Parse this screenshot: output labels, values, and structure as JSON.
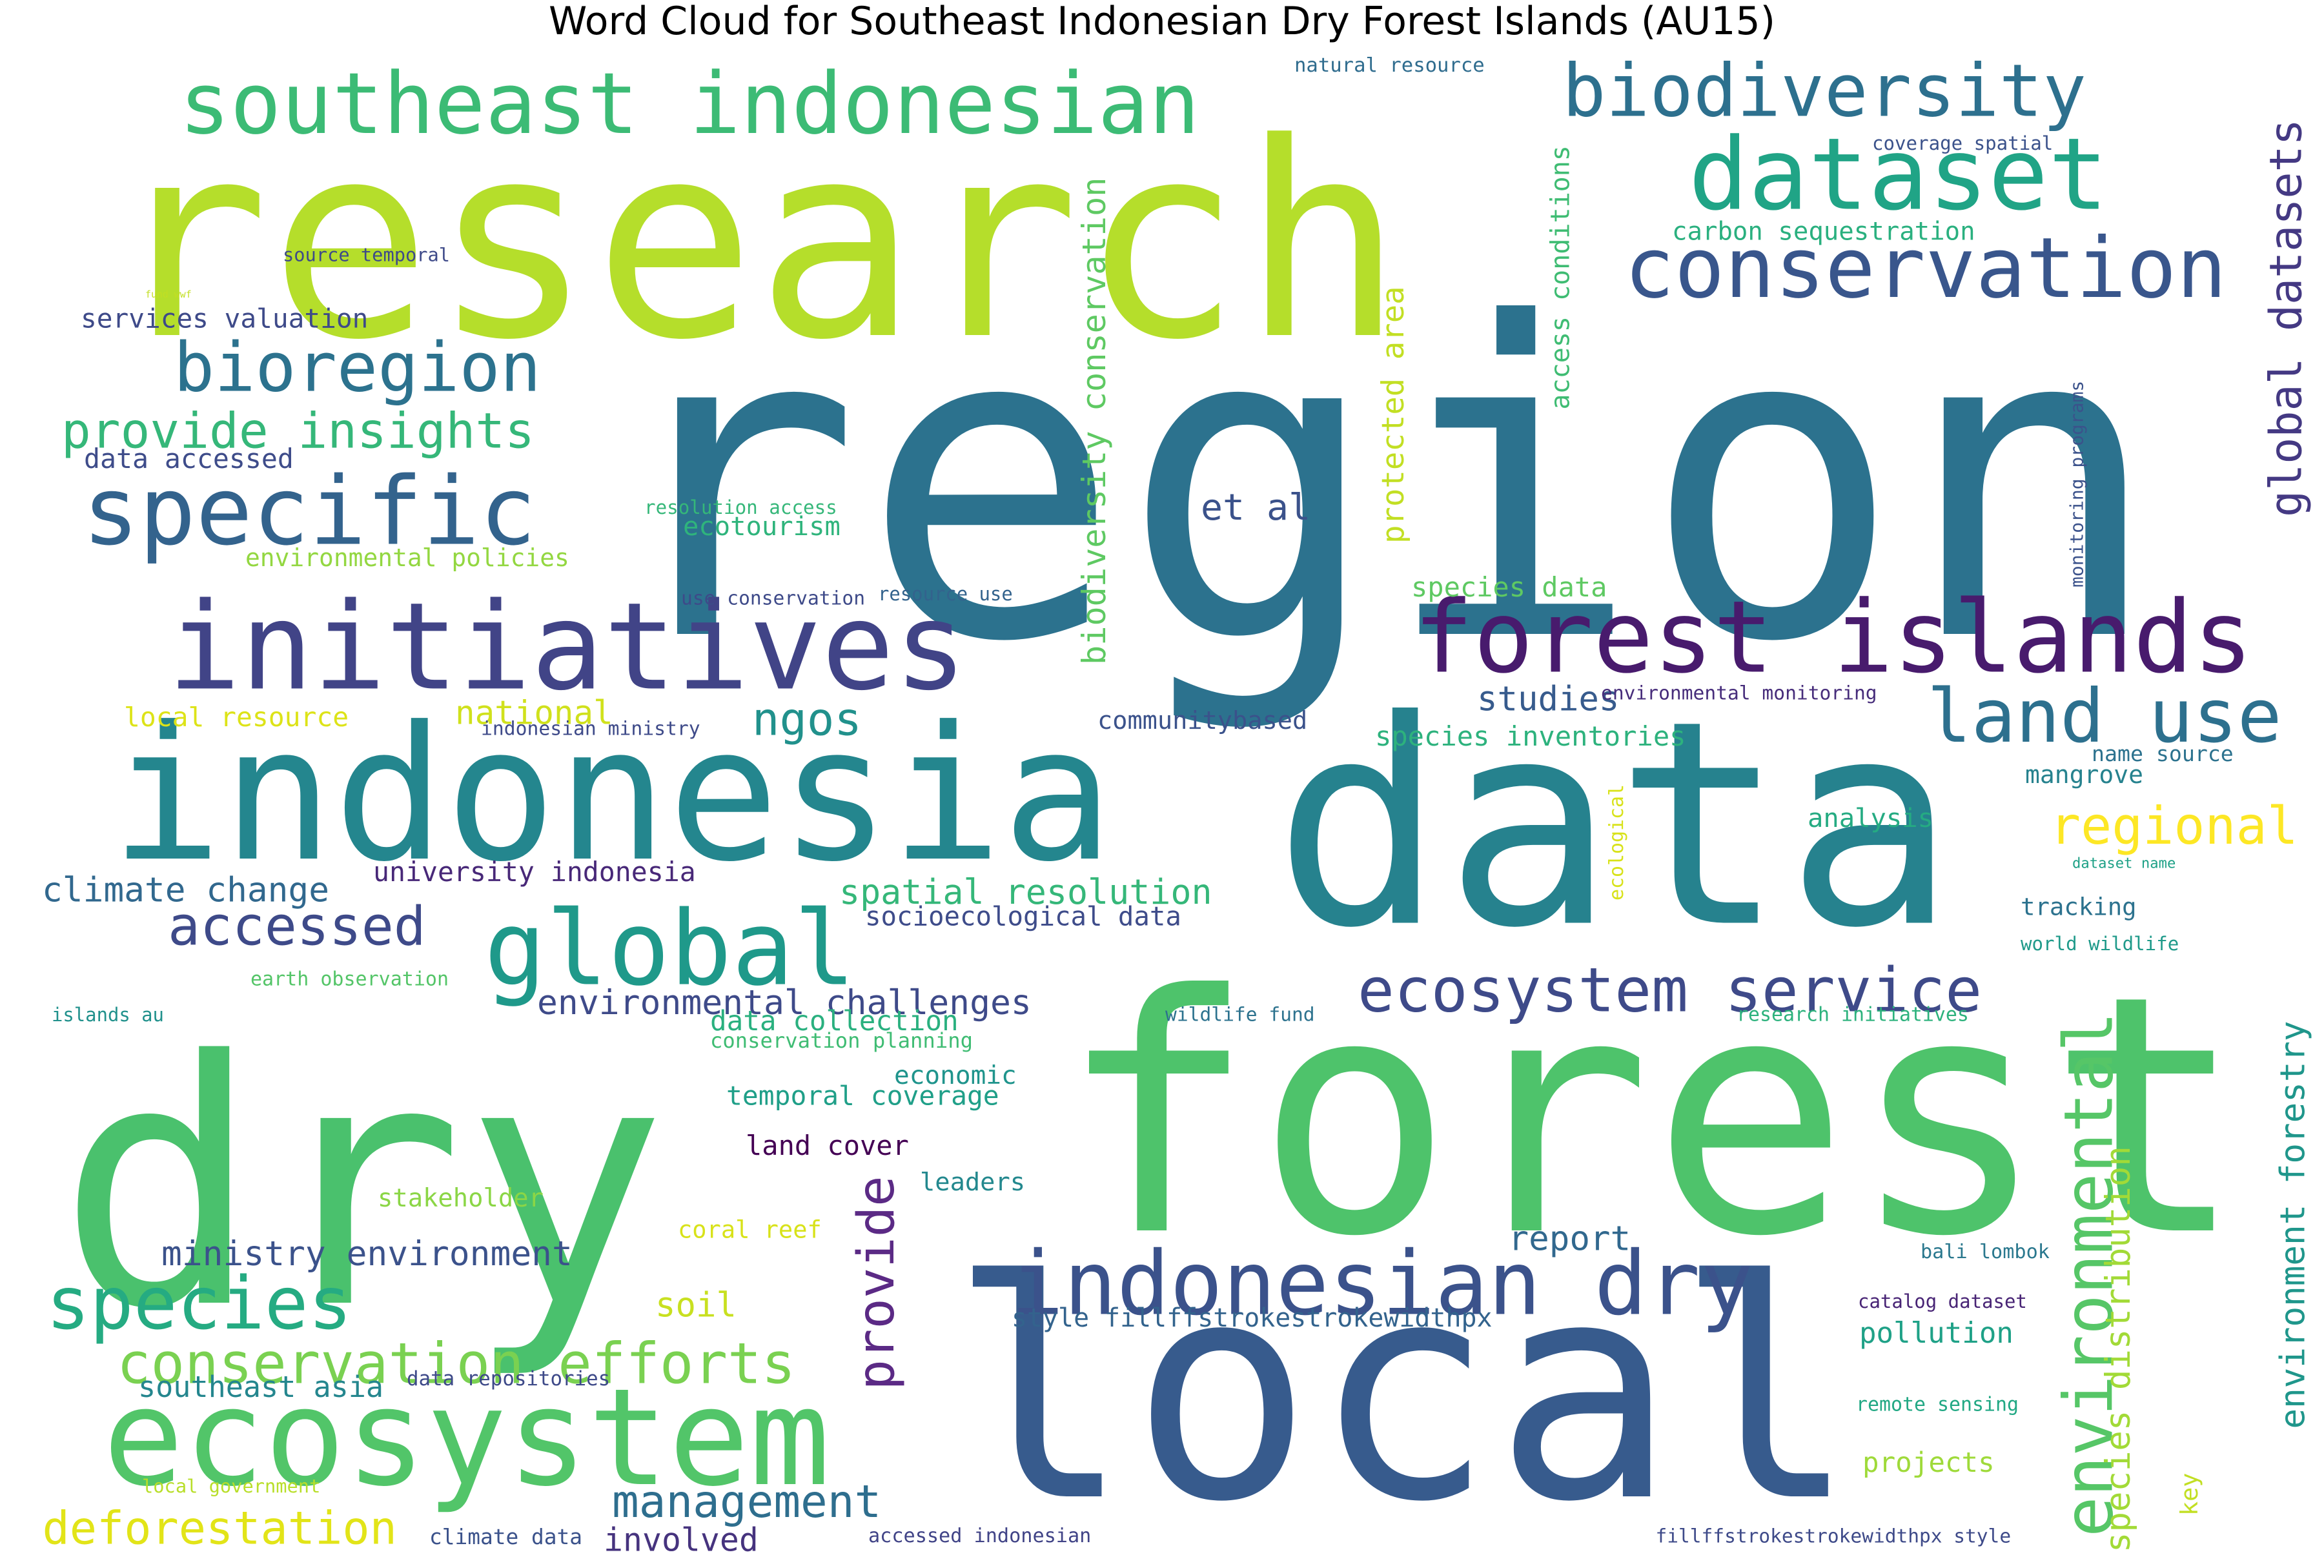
{
  "title": "Word Cloud for Southeast Indonesian Dry Forest Islands (AU15)",
  "words": [
    {
      "text": "region",
      "color": "#2c728e",
      "orientation": "horizontal"
    },
    {
      "text": "research",
      "color": "#b5de2b",
      "orientation": "horizontal"
    },
    {
      "text": "data",
      "color": "#26828e",
      "orientation": "horizontal"
    },
    {
      "text": "forest",
      "color": "#4ec36b",
      "orientation": "horizontal"
    },
    {
      "text": "dry",
      "color": "#4ac16d",
      "orientation": "horizontal"
    },
    {
      "text": "local",
      "color": "#375b8d",
      "orientation": "horizontal"
    },
    {
      "text": "indonesia",
      "color": "#24868e",
      "orientation": "horizontal"
    },
    {
      "text": "initiatives",
      "color": "#414487",
      "orientation": "horizontal"
    },
    {
      "text": "southeast indonesian",
      "color": "#3cbb75",
      "orientation": "horizontal"
    },
    {
      "text": "ecosystem",
      "color": "#52c569",
      "orientation": "horizontal"
    },
    {
      "text": "forest islands",
      "color": "#481b6d",
      "orientation": "horizontal"
    },
    {
      "text": "specific",
      "color": "#33638d",
      "orientation": "horizontal"
    },
    {
      "text": "indonesian dry",
      "color": "#3b528b",
      "orientation": "horizontal"
    },
    {
      "text": "dataset",
      "color": "#20a486",
      "orientation": "horizontal"
    },
    {
      "text": "biodiversity",
      "color": "#2d708e",
      "orientation": "horizontal"
    },
    {
      "text": "conservation",
      "color": "#39568c",
      "orientation": "horizontal"
    },
    {
      "text": "global",
      "color": "#1f998a",
      "orientation": "horizontal"
    },
    {
      "text": "bioregion",
      "color": "#2c728e",
      "orientation": "horizontal"
    },
    {
      "text": "environmental",
      "color": "#56c667",
      "orientation": "vertical"
    },
    {
      "text": "species",
      "color": "#25ab82",
      "orientation": "horizontal"
    },
    {
      "text": "conservation efforts",
      "color": "#7ad151",
      "orientation": "horizontal"
    },
    {
      "text": "ecosystem service",
      "color": "#3e4a89",
      "orientation": "horizontal"
    },
    {
      "text": "land use",
      "color": "#2d708e",
      "orientation": "horizontal"
    },
    {
      "text": "global datasets",
      "color": "#443983",
      "orientation": "vertical"
    },
    {
      "text": "provide insights",
      "color": "#35b779",
      "orientation": "horizontal"
    },
    {
      "text": "regional",
      "color": "#fde725",
      "orientation": "horizontal"
    },
    {
      "text": "accessed",
      "color": "#3e4a89",
      "orientation": "horizontal"
    },
    {
      "text": "provide",
      "color": "#5b2a85",
      "orientation": "vertical"
    },
    {
      "text": "deforestation",
      "color": "#e2e418",
      "orientation": "horizontal"
    },
    {
      "text": "management",
      "color": "#2e6e8e",
      "orientation": "horizontal"
    },
    {
      "text": "ngos",
      "color": "#21918c",
      "orientation": "horizontal"
    },
    {
      "text": "environmental challenges",
      "color": "#3e4a89",
      "orientation": "horizontal"
    },
    {
      "text": "spatial resolution",
      "color": "#35b779",
      "orientation": "horizontal"
    },
    {
      "text": "et al",
      "color": "#3b528b",
      "orientation": "horizontal"
    },
    {
      "text": "biodiversity conservation",
      "color": "#5ec962",
      "orientation": "vertical"
    },
    {
      "text": "protected area",
      "color": "#c2df23",
      "orientation": "vertical"
    },
    {
      "text": "environment forestry",
      "color": "#1f968b",
      "orientation": "vertical"
    },
    {
      "text": "species distribution",
      "color": "#a2da37",
      "orientation": "vertical"
    },
    {
      "text": "climate change",
      "color": "#31688e",
      "orientation": "horizontal"
    },
    {
      "text": "land cover",
      "color": "#440154",
      "orientation": "horizontal"
    },
    {
      "text": "ministry environment",
      "color": "#3b528b",
      "orientation": "horizontal"
    },
    {
      "text": "southeast asia",
      "color": "#24868e",
      "orientation": "horizontal"
    },
    {
      "text": "involved",
      "color": "#46337e",
      "orientation": "horizontal"
    },
    {
      "text": "national",
      "color": "#d0e11c",
      "orientation": "horizontal"
    },
    {
      "text": "studies",
      "color": "#375b8d",
      "orientation": "horizontal"
    },
    {
      "text": "species inventories",
      "color": "#2db27d",
      "orientation": "horizontal"
    },
    {
      "text": "report",
      "color": "#31688e",
      "orientation": "horizontal"
    },
    {
      "text": "pollution",
      "color": "#1fa187",
      "orientation": "horizontal"
    },
    {
      "text": "projects",
      "color": "#9fda3a",
      "orientation": "horizontal"
    },
    {
      "text": "soil",
      "color": "#c8e020",
      "orientation": "horizontal"
    },
    {
      "text": "access conditions",
      "color": "#3fbc73",
      "orientation": "vertical"
    },
    {
      "text": "ecotourism",
      "color": "#2fb47c",
      "orientation": "horizontal"
    },
    {
      "text": "university indonesia",
      "color": "#482878",
      "orientation": "horizontal"
    },
    {
      "text": "temporal coverage",
      "color": "#1f9f88",
      "orientation": "horizontal"
    },
    {
      "text": "data collection",
      "color": "#2ab07f",
      "orientation": "horizontal"
    },
    {
      "text": "services valuation",
      "color": "#3e4a89",
      "orientation": "horizontal"
    },
    {
      "text": "data accessed",
      "color": "#3e4c8a",
      "orientation": "horizontal"
    },
    {
      "text": "environmental policies",
      "color": "#93d741",
      "orientation": "horizontal"
    },
    {
      "text": "local resource",
      "color": "#dde318",
      "orientation": "horizontal"
    },
    {
      "text": "communitybased",
      "color": "#3b528b",
      "orientation": "horizontal"
    },
    {
      "text": "socioecological data",
      "color": "#3e4c8a",
      "orientation": "horizontal"
    },
    {
      "text": "species data",
      "color": "#5ec962",
      "orientation": "horizontal"
    },
    {
      "text": "carbon sequestration",
      "color": "#2ab07f",
      "orientation": "horizontal"
    },
    {
      "text": "mangrove",
      "color": "#26828e",
      "orientation": "horizontal"
    },
    {
      "text": "analysis",
      "color": "#25ab82",
      "orientation": "horizontal"
    },
    {
      "text": "tracking",
      "color": "#2c728e",
      "orientation": "horizontal"
    },
    {
      "text": "style fillffstrokestrokewidthpx",
      "color": "#33638d",
      "orientation": "horizontal"
    },
    {
      "text": "stakeholder",
      "color": "#8bd646",
      "orientation": "horizontal"
    },
    {
      "text": "coral reef",
      "color": "#d8e219",
      "orientation": "horizontal"
    },
    {
      "text": "leaders",
      "color": "#23888e",
      "orientation": "horizontal"
    },
    {
      "text": "economic",
      "color": "#1f948c",
      "orientation": "horizontal"
    },
    {
      "text": "bali lombok",
      "color": "#2a788e",
      "orientation": "horizontal"
    },
    {
      "text": "natural resource",
      "color": "#2f6c8e",
      "orientation": "horizontal"
    },
    {
      "text": "coverage spatial",
      "color": "#3b528b",
      "orientation": "horizontal"
    },
    {
      "text": "source temporal",
      "color": "#3e4a89",
      "orientation": "horizontal"
    },
    {
      "text": "fund wwf",
      "color": "#c2df23",
      "orientation": "horizontal"
    },
    {
      "text": "resolution access",
      "color": "#35b779",
      "orientation": "horizontal"
    },
    {
      "text": "use conservation",
      "color": "#3e4a89",
      "orientation": "horizontal"
    },
    {
      "text": "resource use",
      "color": "#33638d",
      "orientation": "horizontal"
    },
    {
      "text": "indonesian ministry",
      "color": "#3e4a89",
      "orientation": "horizontal"
    },
    {
      "text": "environmental monitoring",
      "color": "#472d7b",
      "orientation": "horizontal"
    },
    {
      "text": "name source",
      "color": "#2c728e",
      "orientation": "horizontal"
    },
    {
      "text": "dataset name",
      "color": "#1fa187",
      "orientation": "horizontal"
    },
    {
      "text": "world wildlife",
      "color": "#1f9a8a",
      "orientation": "horizontal"
    },
    {
      "text": "monitoring programs",
      "color": "#3b528b",
      "orientation": "vertical"
    },
    {
      "text": "ecological",
      "color": "#d8e219",
      "orientation": "vertical"
    },
    {
      "text": "earth observation",
      "color": "#54c568",
      "orientation": "horizontal"
    },
    {
      "text": "islands au",
      "color": "#21918c",
      "orientation": "horizontal"
    },
    {
      "text": "wildlife fund",
      "color": "#2c728e",
      "orientation": "horizontal"
    },
    {
      "text": "research initiatives",
      "color": "#2db27d",
      "orientation": "horizontal"
    },
    {
      "text": "conservation planning",
      "color": "#3fbc73",
      "orientation": "horizontal"
    },
    {
      "text": "catalog dataset",
      "color": "#482475",
      "orientation": "horizontal"
    },
    {
      "text": "remote sensing",
      "color": "#22a884",
      "orientation": "horizontal"
    },
    {
      "text": "key",
      "color": "#c2df23",
      "orientation": "vertical"
    },
    {
      "text": "data repositories",
      "color": "#3e4a89",
      "orientation": "horizontal"
    },
    {
      "text": "local government",
      "color": "#b8de29",
      "orientation": "horizontal"
    },
    {
      "text": "climate data",
      "color": "#3b528b",
      "orientation": "horizontal"
    },
    {
      "text": "accessed indonesian",
      "color": "#414487",
      "orientation": "horizontal"
    },
    {
      "text": "fillffstrokestrokewidthpx style",
      "color": "#3e4a89",
      "orientation": "horizontal"
    }
  ]
}
